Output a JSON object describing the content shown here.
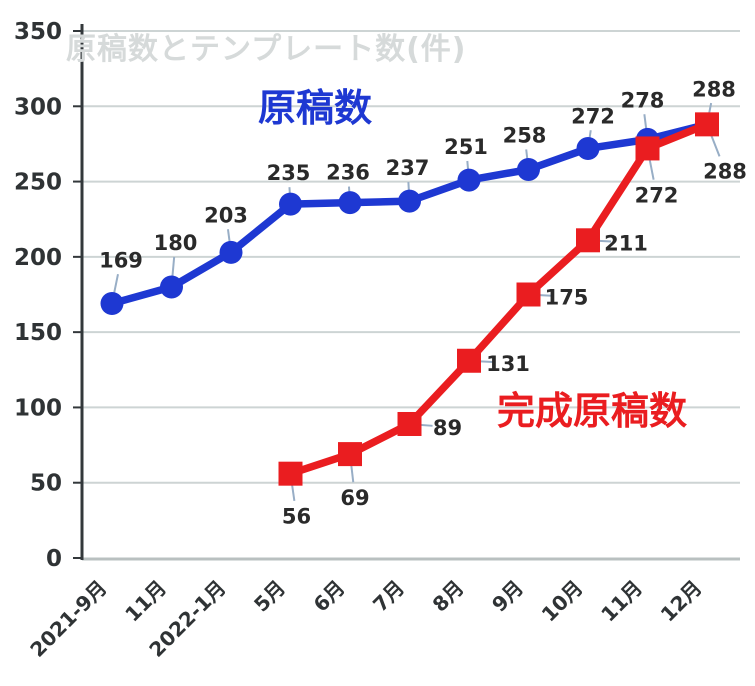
{
  "chart_data": {
    "type": "line",
    "title": "原稿数とテンプレート数(件)",
    "categories": [
      "2021-9月",
      "11月",
      "2022-1月",
      "5月",
      "6月",
      "7月",
      "8月",
      "9月",
      "10月",
      "11月",
      "12月"
    ],
    "series": [
      {
        "name": "原稿数",
        "color": "#1e38d2",
        "marker": "circle",
        "start_index": 0,
        "values": [
          169,
          180,
          203,
          235,
          236,
          237,
          251,
          258,
          272,
          278,
          288
        ],
        "label_offsets": [
          [
            9,
            -44
          ],
          [
            4,
            -45
          ],
          [
            -5,
            -38
          ],
          [
            -2,
            -32
          ],
          [
            -2,
            -31
          ],
          [
            -2,
            -34
          ],
          [
            -3,
            -34
          ],
          [
            -4,
            -35
          ],
          [
            5,
            -33
          ],
          [
            -5,
            -40
          ],
          [
            7,
            -36
          ]
        ]
      },
      {
        "name": "完成原稿数",
        "color": "#ea1d20",
        "marker": "square",
        "start_index": 3,
        "values": [
          56,
          69,
          89,
          131,
          175,
          211,
          272,
          288
        ],
        "label_offsets": [
          [
            6,
            42
          ],
          [
            5,
            43
          ],
          [
            38,
            3
          ],
          [
            39,
            2
          ],
          [
            38,
            2
          ],
          [
            38,
            2
          ],
          [
            9,
            46
          ],
          [
            18,
            46
          ]
        ]
      }
    ],
    "ylim": [
      0,
      350
    ],
    "ytick_step": 50,
    "ytick_labels": [
      "0",
      "50",
      "100",
      "150",
      "200",
      "250",
      "300",
      "350"
    ],
    "grid": true,
    "legend_position": "inline-text-annotations",
    "x_axis_rotation_deg": -45
  },
  "colors": {
    "background": "#ffffff",
    "series_blue": "#1e38d2",
    "series_red": "#ea1d20",
    "title_faint": "#d6dada",
    "data_label": "#2a2a2a",
    "axis_label": "#2f3335",
    "axis_line": "#33383b",
    "baseline": "#b9c0c0",
    "gridline": "#cdd4d4",
    "leader_line": "#98aec6"
  }
}
